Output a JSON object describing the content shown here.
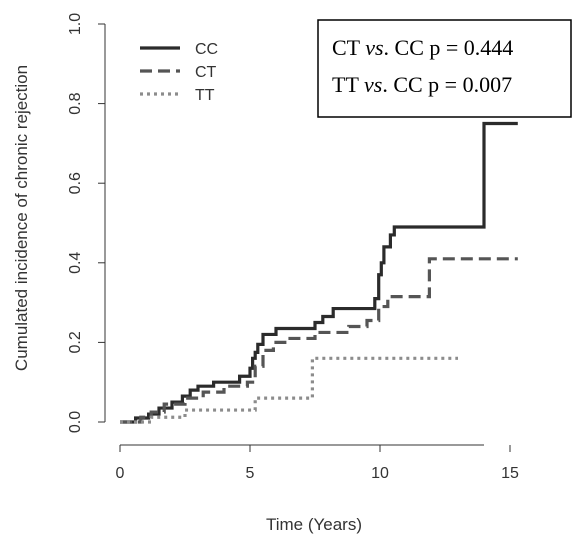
{
  "chart_data": {
    "type": "line",
    "xlabel": "Time (Years)",
    "ylabel": "Cumulated incidence of chronic rejection",
    "xlim": [
      0,
      16.5
    ],
    "ylim": [
      0,
      1.0
    ],
    "x_ticks": [
      0,
      5,
      10,
      15
    ],
    "y_ticks": [
      0.0,
      0.2,
      0.4,
      0.6,
      0.8,
      1.0
    ],
    "x_tick_labels": [
      "0",
      "5",
      "10",
      "15"
    ],
    "y_tick_labels": [
      "0.0",
      "0.2",
      "0.4",
      "0.6",
      "0.8",
      "1.0"
    ],
    "grid": false,
    "legend_position": "top-left",
    "series": [
      {
        "name": "CC",
        "color": "#2b2b2b",
        "dash": "solid",
        "steps": [
          [
            0.0,
            0.0
          ],
          [
            0.6,
            0.01
          ],
          [
            1.1,
            0.02
          ],
          [
            1.5,
            0.035
          ],
          [
            2.0,
            0.05
          ],
          [
            2.4,
            0.065
          ],
          [
            2.7,
            0.08
          ],
          [
            3.0,
            0.09
          ],
          [
            3.6,
            0.1
          ],
          [
            4.6,
            0.115
          ],
          [
            5.0,
            0.135
          ],
          [
            5.1,
            0.16
          ],
          [
            5.2,
            0.175
          ],
          [
            5.3,
            0.195
          ],
          [
            5.5,
            0.22
          ],
          [
            6.0,
            0.235
          ],
          [
            7.5,
            0.25
          ],
          [
            7.8,
            0.265
          ],
          [
            8.2,
            0.285
          ],
          [
            9.8,
            0.31
          ],
          [
            9.95,
            0.37
          ],
          [
            10.05,
            0.4
          ],
          [
            10.15,
            0.44
          ],
          [
            10.4,
            0.47
          ],
          [
            10.55,
            0.49
          ],
          [
            14.0,
            0.75
          ],
          [
            15.3,
            0.75
          ]
        ]
      },
      {
        "name": "CT",
        "color": "#555555",
        "dash": "dashed",
        "steps": [
          [
            0.0,
            0.0
          ],
          [
            0.8,
            0.012
          ],
          [
            1.2,
            0.025
          ],
          [
            1.7,
            0.045
          ],
          [
            2.5,
            0.06
          ],
          [
            3.2,
            0.075
          ],
          [
            4.0,
            0.09
          ],
          [
            4.9,
            0.1
          ],
          [
            5.2,
            0.14
          ],
          [
            5.5,
            0.18
          ],
          [
            5.9,
            0.2
          ],
          [
            6.4,
            0.21
          ],
          [
            7.5,
            0.225
          ],
          [
            8.8,
            0.24
          ],
          [
            9.5,
            0.255
          ],
          [
            9.95,
            0.29
          ],
          [
            10.3,
            0.315
          ],
          [
            11.9,
            0.41
          ],
          [
            15.3,
            0.41
          ]
        ]
      },
      {
        "name": "TT",
        "color": "#8c8c8c",
        "dash": "dotted",
        "steps": [
          [
            0.0,
            0.0
          ],
          [
            1.2,
            0.012
          ],
          [
            2.5,
            0.03
          ],
          [
            5.2,
            0.06
          ],
          [
            7.4,
            0.16
          ],
          [
            13.0,
            0.16
          ]
        ]
      }
    ],
    "annotation": {
      "line1": {
        "a": "CT ",
        "vs": "vs",
        "b": ". CC p = 0.444"
      },
      "line2": {
        "a": "TT ",
        "vs": "vs",
        "b": ". CC p = 0.007"
      }
    }
  }
}
